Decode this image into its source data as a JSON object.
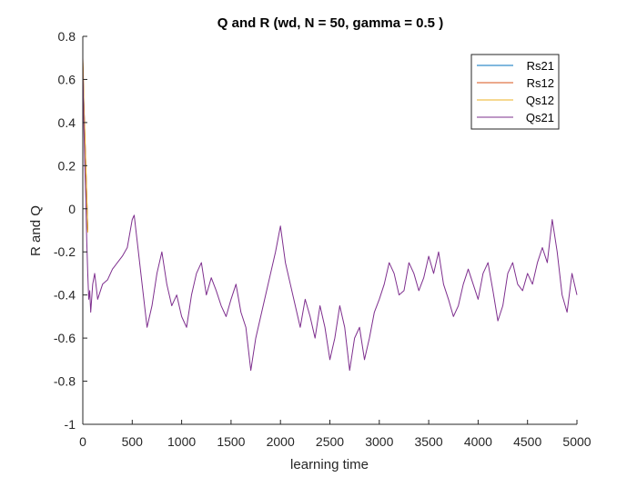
{
  "chart_data": {
    "type": "line",
    "title": "Q and R (wd, N = 50, gamma = 0.5 )",
    "xlabel": "learning time",
    "ylabel": "R and Q",
    "xlim": [
      0,
      5000
    ],
    "ylim": [
      -1,
      0.8
    ],
    "xticks": [
      0,
      500,
      1000,
      1500,
      2000,
      2500,
      3000,
      3500,
      4000,
      4500,
      5000
    ],
    "yticks": [
      -1,
      -0.8,
      -0.6,
      -0.4,
      -0.2,
      0,
      0.2,
      0.4,
      0.6,
      0.8
    ],
    "xtick_labels": [
      "0",
      "500",
      "1000",
      "1500",
      "2000",
      "2500",
      "3000",
      "3500",
      "4000",
      "4500",
      "5000"
    ],
    "ytick_labels": [
      "-1",
      "-0.8",
      "-0.6",
      "-0.4",
      "-0.2",
      "0",
      "0.2",
      "0.4",
      "0.6",
      "0.8"
    ],
    "grid": false,
    "legend_position": "top-right",
    "series": [
      {
        "name": "Rs21",
        "color": "#0072BD",
        "x": [
          0,
          5,
          10,
          20,
          30,
          40,
          50
        ],
        "y": [
          0.68,
          0.6,
          0.5,
          0.35,
          0.2,
          0.05,
          -0.1
        ]
      },
      {
        "name": "Rs12",
        "color": "#D95319",
        "x": [
          0,
          5,
          10,
          20,
          30,
          40,
          50
        ],
        "y": [
          0.7,
          0.62,
          0.5,
          0.36,
          0.21,
          0.06,
          -0.1
        ]
      },
      {
        "name": "Qs12",
        "color": "#EDB120",
        "x": [
          0,
          5,
          10,
          20,
          30,
          40,
          50
        ],
        "y": [
          0.69,
          0.6,
          0.49,
          0.35,
          0.2,
          0.05,
          -0.11
        ]
      },
      {
        "name": "Qs21",
        "color": "#7E2F8E",
        "x": [
          0,
          10,
          20,
          30,
          40,
          50,
          60,
          70,
          80,
          100,
          120,
          150,
          200,
          250,
          300,
          350,
          400,
          450,
          500,
          520,
          550,
          600,
          650,
          700,
          750,
          800,
          850,
          900,
          950,
          1000,
          1050,
          1100,
          1150,
          1200,
          1250,
          1300,
          1350,
          1400,
          1450,
          1500,
          1550,
          1600,
          1650,
          1700,
          1750,
          1800,
          1850,
          1900,
          1950,
          2000,
          2050,
          2100,
          2150,
          2200,
          2250,
          2300,
          2350,
          2400,
          2450,
          2500,
          2550,
          2600,
          2650,
          2700,
          2750,
          2800,
          2850,
          2900,
          2950,
          3000,
          3050,
          3100,
          3150,
          3200,
          3250,
          3300,
          3350,
          3400,
          3450,
          3500,
          3550,
          3600,
          3650,
          3700,
          3750,
          3800,
          3850,
          3900,
          3950,
          4000,
          4050,
          4100,
          4150,
          4200,
          4250,
          4300,
          4350,
          4400,
          4450,
          4500,
          4550,
          4600,
          4650,
          4700,
          4750,
          4800,
          4850,
          4900,
          4950,
          5000
        ],
        "y": [
          0.66,
          0.4,
          0.2,
          0.05,
          -0.15,
          -0.3,
          -0.42,
          -0.38,
          -0.48,
          -0.35,
          -0.3,
          -0.42,
          -0.35,
          -0.33,
          -0.28,
          -0.25,
          -0.22,
          -0.18,
          -0.05,
          -0.03,
          -0.15,
          -0.35,
          -0.55,
          -0.45,
          -0.3,
          -0.2,
          -0.35,
          -0.45,
          -0.4,
          -0.5,
          -0.55,
          -0.4,
          -0.3,
          -0.25,
          -0.4,
          -0.32,
          -0.38,
          -0.45,
          -0.5,
          -0.42,
          -0.35,
          -0.48,
          -0.55,
          -0.75,
          -0.6,
          -0.5,
          -0.4,
          -0.3,
          -0.2,
          -0.08,
          -0.25,
          -0.35,
          -0.45,
          -0.55,
          -0.42,
          -0.5,
          -0.6,
          -0.45,
          -0.55,
          -0.7,
          -0.6,
          -0.45,
          -0.55,
          -0.75,
          -0.6,
          -0.55,
          -0.7,
          -0.6,
          -0.48,
          -0.42,
          -0.35,
          -0.25,
          -0.3,
          -0.4,
          -0.38,
          -0.25,
          -0.3,
          -0.38,
          -0.32,
          -0.22,
          -0.3,
          -0.2,
          -0.35,
          -0.42,
          -0.5,
          -0.45,
          -0.35,
          -0.28,
          -0.35,
          -0.42,
          -0.3,
          -0.25,
          -0.38,
          -0.52,
          -0.45,
          -0.3,
          -0.25,
          -0.35,
          -0.38,
          -0.3,
          -0.35,
          -0.25,
          -0.18,
          -0.25,
          -0.05,
          -0.2,
          -0.4,
          -0.48,
          -0.3,
          -0.4
        ]
      }
    ]
  }
}
